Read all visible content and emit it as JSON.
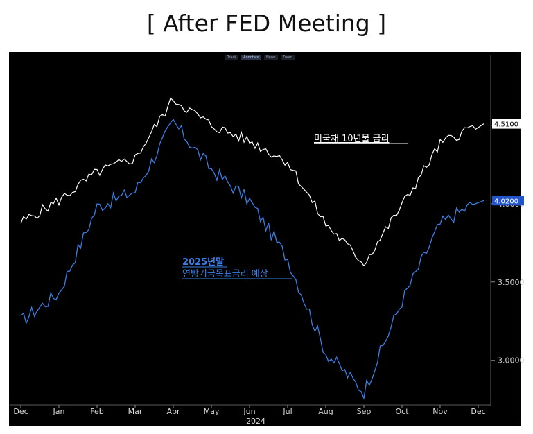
{
  "page_title": "[ After FED Meeting ]",
  "toolbar": {
    "track": "Track",
    "annotate": "Annotate",
    "news": "News",
    "zoom": "Zoom"
  },
  "colors": {
    "us10y": "#ffffff",
    "fed_expect": "#3a7fe6",
    "background": "#000000",
    "label_box": "#2255cc"
  },
  "chart_data": {
    "type": "line",
    "title": "[ After FED Meeting ]",
    "x_tick_labels": [
      "Dec",
      "Jan",
      "Feb",
      "Mar",
      "Apr",
      "May",
      "Jun",
      "Jul",
      "Aug",
      "Sep",
      "Oct",
      "Nov",
      "Dec"
    ],
    "x_year_label": "2024",
    "y_ticks": [
      3.0,
      3.5,
      4.0,
      4.5
    ],
    "y_tick_labels": [
      "3.0000",
      "3.5000",
      "4.0000",
      "4.5000"
    ],
    "ylim": [
      2.72,
      4.88
    ],
    "annotations": [
      {
        "text": "미국채 10년물 금리",
        "series": 0
      },
      {
        "text": "2025년말",
        "series": 1
      },
      {
        "text": "연방기금목표금리 예상",
        "series": 1
      }
    ],
    "series": [
      {
        "name": "미국채 10년물 금리",
        "last_value_label": "4.5100",
        "x": [
          "Dec",
          "Jan",
          "Feb",
          "Mar",
          "Apr",
          "May",
          "Jun",
          "Jul",
          "Aug",
          "Sep",
          "Oct",
          "Nov",
          "Dec"
        ],
        "values": [
          3.88,
          4.02,
          4.2,
          4.29,
          4.67,
          4.5,
          4.4,
          4.27,
          3.87,
          3.62,
          3.99,
          4.38,
          4.51
        ]
      },
      {
        "name": "2025년말 연방기금목표금리 예상",
        "last_value_label": "4.0200",
        "x": [
          "Dec",
          "Jan",
          "Feb",
          "Mar",
          "Apr",
          "May",
          "Jun",
          "Jul",
          "Aug",
          "Sep",
          "Oct",
          "Nov",
          "Dec"
        ],
        "values": [
          3.25,
          3.43,
          3.98,
          4.08,
          4.52,
          4.22,
          4.02,
          3.65,
          3.05,
          2.8,
          3.38,
          3.87,
          4.02
        ]
      }
    ]
  }
}
